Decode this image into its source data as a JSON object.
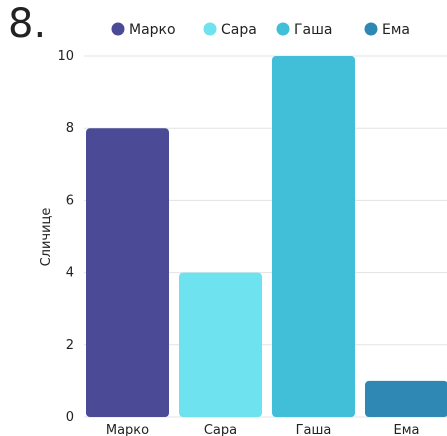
{
  "question_number": "8.",
  "chart_data": {
    "type": "bar",
    "categories": [
      "Марко",
      "Сара",
      "Гаша",
      "Ема"
    ],
    "values": [
      8,
      4,
      10,
      1
    ],
    "colors": [
      "#4a4a96",
      "#6ee3ef",
      "#41bed8",
      "#2f88b4"
    ],
    "ylabel": "Сличице",
    "ylim": [
      0,
      10
    ],
    "yticks": [
      0,
      2,
      4,
      6,
      8,
      10
    ],
    "grid": true,
    "legend": {
      "placement": "top",
      "entries": [
        "Марко",
        "Сара",
        "Гаша",
        "Ема"
      ]
    }
  }
}
